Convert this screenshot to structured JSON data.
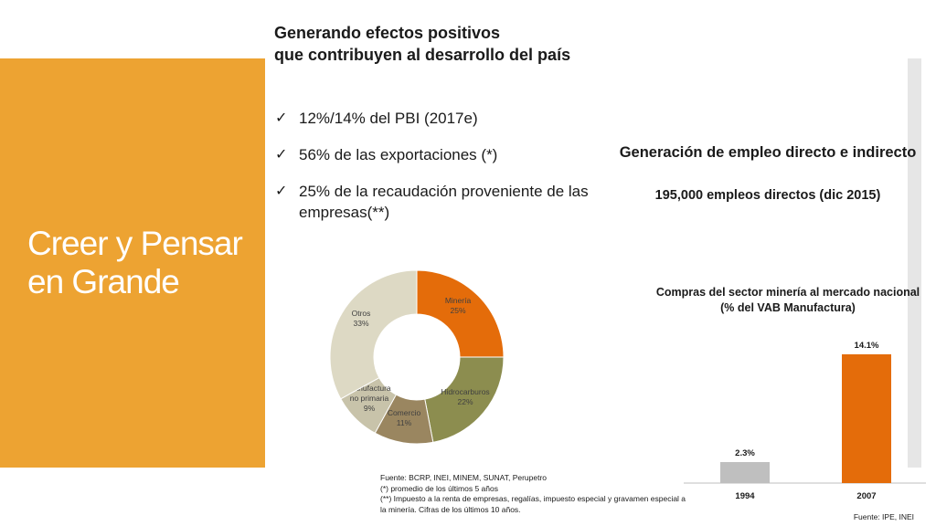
{
  "side": {
    "title": "Creer y Pensar en Grande"
  },
  "heading": {
    "line1": "Generando efectos positivos",
    "line2": "que contribuyen al desarrollo del país"
  },
  "bullets": [
    {
      "check": "✓",
      "text": "12%/14% del PBI (2017e)"
    },
    {
      "check": "✓",
      "text": "56% de las exportaciones (*)"
    },
    {
      "check": "✓",
      "text": "25% de la recaudación proveniente de las empresas(**)"
    }
  ],
  "empleo": {
    "title": "Generación de empleo directo e indirecto",
    "subtitle": "195,000 empleos directos (dic 2015)"
  },
  "colors": {
    "side_panel": "#eda332",
    "mineria": "#e46c0a",
    "hidrocarburos": "#8c8d4f",
    "comercio": "#9a8660",
    "manufactura": "#c8c3aa",
    "otros": "#ddd9c4",
    "bar_1994": "#bfbfbf",
    "bar_2007": "#e46c0a"
  },
  "chart_data": [
    {
      "type": "pie",
      "donut": true,
      "title": "",
      "slices": [
        {
          "key": "mineria",
          "label": [
            "Minería",
            "25%"
          ],
          "value": 25,
          "color": "#e46c0a"
        },
        {
          "key": "hidrocarburos",
          "label": [
            "Hidrocarburos",
            "22%"
          ],
          "value": 22,
          "color": "#8c8d4f"
        },
        {
          "key": "comercio",
          "label": [
            "Comercio",
            "11%"
          ],
          "value": 11,
          "color": "#9a8660"
        },
        {
          "key": "manufactura",
          "label": [
            "Manufactura",
            "no primaria",
            "9%"
          ],
          "value": 9,
          "color": "#c8c3aa"
        },
        {
          "key": "otros",
          "label": [
            "Otros",
            "33%"
          ],
          "value": 33,
          "color": "#ddd9c4"
        }
      ]
    },
    {
      "type": "bar",
      "title": "Compras del sector minería al mercado nacional",
      "subtitle": "(% del VAB Manufactura)",
      "categories": [
        "1994",
        "2007"
      ],
      "values": [
        2.3,
        14.1
      ],
      "value_labels": [
        "2.3%",
        "14.1%"
      ],
      "colors": [
        "#bfbfbf",
        "#e46c0a"
      ],
      "ylim": [
        0,
        14.1
      ]
    }
  ],
  "sources": {
    "left": [
      "Fuente: BCRP, INEI, MINEM, SUNAT, Perupetro",
      "(*) promedio de los últimos 5 años",
      "(**) Impuesto a la renta de empresas, regalías, impuesto especial y gravamen especial a",
      "la minería. Cifras  de los últimos 10 años."
    ],
    "right": "Fuente: IPE, INEI"
  }
}
